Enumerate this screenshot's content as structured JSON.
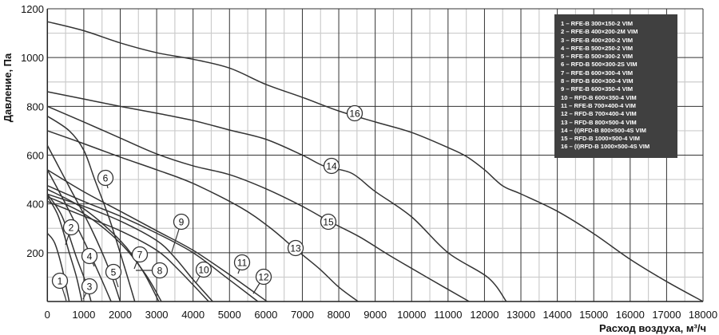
{
  "chart_data": {
    "type": "line",
    "title": "",
    "xlabel": "Расход воздуха, м³/ч",
    "ylabel": "Давление, Па",
    "xlim": [
      0,
      18000
    ],
    "ylim": [
      0,
      1200
    ],
    "x_ticks": [
      0,
      1000,
      2000,
      3000,
      4000,
      5000,
      6000,
      7000,
      8000,
      9000,
      10000,
      11000,
      12000,
      13000,
      14000,
      15000,
      16000,
      17000,
      18000
    ],
    "y_ticks": [
      200,
      400,
      600,
      800,
      1000,
      1200
    ],
    "grid": {
      "major": true,
      "minor": true
    },
    "legend_position": "top-right",
    "legend": [
      "1 – RFE-B 300×150-2 VIM",
      "2 – RFE-B 400×200-2M VIM",
      "3 – RFE-B 400×200-2 VIM",
      "4 – RFE-B 500×250-2 VIM",
      "5 – RFE-B 500×300-2 VIM",
      "6 – RFD-B 500×300-2S VIM",
      "7 – RFE-B 600×300-4 VIM",
      "8 – RFD-B 600×300-4 VIM",
      "9 – RFE-B 600×350-4 VIM",
      "10 – RFD-B 600×350-4 VIM",
      "11 – RFE-B 700×400-4 VIM",
      "12 – RFD-B 700×400-4 VIM",
      "13 – RFD-B 800×500-4 VIM",
      "14 – (I)RFD-B 800×500-4S VIM",
      "15 – RFD-B 1000×500-4 VIM",
      "16 – (I)RFD-B 1000×500-4S VIM"
    ],
    "series": [
      {
        "label": "1",
        "points": [
          [
            0,
            280
          ],
          [
            200,
            240
          ],
          [
            400,
            140
          ],
          [
            600,
            0
          ]
        ]
      },
      {
        "label": "2",
        "points": [
          [
            0,
            430
          ],
          [
            300,
            350
          ],
          [
            600,
            200
          ],
          [
            800,
            100
          ],
          [
            950,
            0
          ]
        ]
      },
      {
        "label": "3",
        "points": [
          [
            0,
            440
          ],
          [
            400,
            350
          ],
          [
            800,
            180
          ],
          [
            1050,
            80
          ],
          [
            1200,
            0
          ]
        ]
      },
      {
        "label": "4",
        "points": [
          [
            0,
            540
          ],
          [
            500,
            400
          ],
          [
            1000,
            250
          ],
          [
            1400,
            120
          ],
          [
            1750,
            0
          ]
        ]
      },
      {
        "label": "5",
        "points": [
          [
            0,
            640
          ],
          [
            600,
            470
          ],
          [
            1200,
            300
          ],
          [
            1700,
            130
          ],
          [
            2000,
            0
          ]
        ]
      },
      {
        "label": "6",
        "points": [
          [
            0,
            760
          ],
          [
            600,
            700
          ],
          [
            1000,
            620
          ],
          [
            1300,
            500
          ],
          [
            1700,
            340
          ],
          [
            2100,
            150
          ],
          [
            2400,
            0
          ]
        ]
      },
      {
        "label": "7",
        "points": [
          [
            0,
            460
          ],
          [
            1000,
            380
          ],
          [
            2000,
            250
          ],
          [
            2600,
            130
          ],
          [
            3060,
            0
          ]
        ]
      },
      {
        "label": "8",
        "points": [
          [
            0,
            430
          ],
          [
            1000,
            360
          ],
          [
            2000,
            240
          ],
          [
            2700,
            110
          ],
          [
            3130,
            0
          ]
        ]
      },
      {
        "label": "9",
        "points": [
          [
            0,
            440
          ],
          [
            1000,
            390
          ],
          [
            2000,
            330
          ],
          [
            3000,
            250
          ],
          [
            3500,
            180
          ],
          [
            4000,
            90
          ],
          [
            4540,
            0
          ]
        ]
      },
      {
        "label": "10",
        "points": [
          [
            0,
            410
          ],
          [
            1000,
            350
          ],
          [
            2000,
            290
          ],
          [
            3000,
            210
          ],
          [
            3600,
            130
          ],
          [
            4430,
            0
          ]
        ]
      },
      {
        "label": "11",
        "points": [
          [
            0,
            540
          ],
          [
            1000,
            450
          ],
          [
            2000,
            370
          ],
          [
            3000,
            290
          ],
          [
            4000,
            210
          ],
          [
            5000,
            110
          ],
          [
            6030,
            0
          ]
        ]
      },
      {
        "label": "12",
        "points": [
          [
            0,
            475
          ],
          [
            1000,
            410
          ],
          [
            2000,
            350
          ],
          [
            3000,
            280
          ],
          [
            4000,
            200
          ],
          [
            4900,
            100
          ],
          [
            5780,
            0
          ]
        ]
      },
      {
        "label": "13",
        "points": [
          [
            0,
            700
          ],
          [
            1000,
            647
          ],
          [
            2000,
            592
          ],
          [
            3000,
            540
          ],
          [
            4000,
            484
          ],
          [
            5300,
            386
          ],
          [
            6100,
            304
          ],
          [
            6800,
            216
          ],
          [
            7470,
            134
          ],
          [
            8000,
            59
          ],
          [
            8530,
            0
          ]
        ]
      },
      {
        "label": "14",
        "points": [
          [
            0,
            860
          ],
          [
            1000,
            830
          ],
          [
            2000,
            800
          ],
          [
            3000,
            772
          ],
          [
            4000,
            742
          ],
          [
            5000,
            703
          ],
          [
            6000,
            665
          ],
          [
            7000,
            600
          ],
          [
            7600,
            555
          ],
          [
            8350,
            526
          ],
          [
            9000,
            451
          ],
          [
            10000,
            347
          ],
          [
            11000,
            200
          ],
          [
            12100,
            98
          ],
          [
            12600,
            0
          ]
        ]
      },
      {
        "label": "15",
        "points": [
          [
            0,
            800
          ],
          [
            1000,
            736
          ],
          [
            2000,
            670
          ],
          [
            3000,
            605
          ],
          [
            4000,
            556
          ],
          [
            5000,
            520
          ],
          [
            6000,
            462
          ],
          [
            7000,
            390
          ],
          [
            7760,
            327
          ],
          [
            8570,
            265
          ],
          [
            9380,
            190
          ],
          [
            10400,
            101
          ],
          [
            11580,
            0
          ]
        ]
      },
      {
        "label": "16",
        "points": [
          [
            0,
            1147
          ],
          [
            1000,
            1110
          ],
          [
            2000,
            1060
          ],
          [
            3000,
            1020
          ],
          [
            4000,
            993
          ],
          [
            5000,
            957
          ],
          [
            6000,
            890
          ],
          [
            7000,
            837
          ],
          [
            8000,
            781
          ],
          [
            9000,
            736
          ],
          [
            10000,
            693
          ],
          [
            11000,
            631
          ],
          [
            11500,
            595
          ],
          [
            12000,
            540
          ],
          [
            12500,
            474
          ],
          [
            13000,
            441
          ],
          [
            14000,
            370
          ],
          [
            15000,
            278
          ],
          [
            16000,
            173
          ],
          [
            17000,
            82
          ],
          [
            18000,
            0
          ]
        ]
      }
    ],
    "colors": {
      "line": "#333333",
      "legend_bg": "#404040",
      "legend_text": "#ffffff",
      "grid_major": "#333333",
      "grid_minor": "#cccccc"
    }
  }
}
